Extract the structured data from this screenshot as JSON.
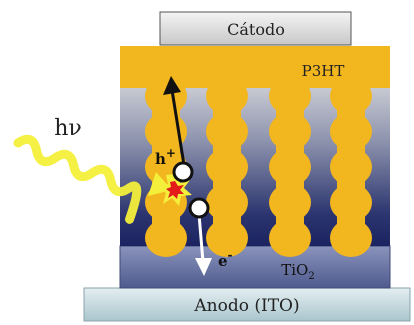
{
  "labels": {
    "cathode": "Cátodo",
    "p3ht": "P3HT",
    "anode": "Anodo (ITO)",
    "tio2_base": "TiO",
    "tio2_sub": "2",
    "photon": "hν",
    "hole": "h",
    "hole_sign": "+",
    "electron": "e",
    "electron_sign": "-"
  },
  "colors": {
    "cathode_fill": "#d9d9d9",
    "p3ht_fill": "#f2b61f",
    "tio2_top": "#b9bcc9",
    "tio2_bottom": "#1f2a66",
    "tio2_base_fill": "#6a76a6",
    "anode_fill": "#c8dbe0",
    "pillar_fill": "#f2b61f",
    "photon_wave": "#f4ef3a",
    "exciton": "#e31b1b",
    "arrow_hole": "#111111",
    "arrow_electron": "#ffffff"
  },
  "icons": {
    "photon_wave": "wavy-arrow-icon",
    "exciton": "burst-icon",
    "hole": "hole-circle-icon",
    "electron": "electron-circle-icon"
  },
  "structure": {
    "pillar_columns": 4,
    "blobs_per_pillar": 5
  }
}
